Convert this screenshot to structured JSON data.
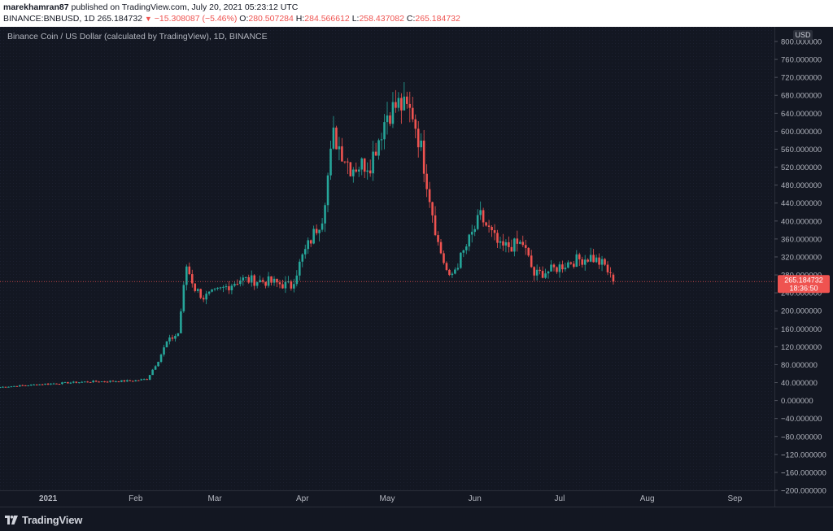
{
  "header": {
    "author": "marekhamran87",
    "published_text": "published on TradingView.com, July 20, 2021 05:23:12 UTC",
    "symbol_line_prefix": "BINANCE:BNBUSD, 1D 265.184732",
    "change_text": "−15.308087 (−5.46%)",
    "open_label": "O:",
    "open_value": "280.507284",
    "high_label": "H:",
    "high_value": "284.566612",
    "low_label": "L:",
    "low_value": "258.437082",
    "close_label": "C:",
    "close_value": "265.184732"
  },
  "chart_title": "Binance Coin / US Dollar (calculated by TradingView), 1D, BINANCE",
  "currency_label": "USD",
  "price_badge": {
    "price": "265.184732",
    "countdown": "18:36:50"
  },
  "footer": {
    "logo_text": "TradingView"
  },
  "colors": {
    "up": "#26a69a",
    "down": "#ef5350",
    "background": "#131722",
    "text": "#b2b5be"
  },
  "chart_data": {
    "type": "candlestick",
    "title": "Binance Coin / US Dollar (calculated by TradingView), 1D, BINANCE",
    "x_tick_labels": [
      "2021",
      "Feb",
      "Mar",
      "Apr",
      "May",
      "Jun",
      "Jul",
      "Aug",
      "Sep"
    ],
    "x_range": [
      "2020-12-15",
      "2021-09-15"
    ],
    "y_ticks": [
      800,
      760,
      720,
      680,
      640,
      600,
      560,
      520,
      480,
      440,
      400,
      360,
      320,
      280,
      240,
      200,
      160,
      120,
      80,
      40,
      0,
      -40,
      -80,
      -120,
      -160,
      -200
    ],
    "y_tick_labels": [
      "800.000000",
      "760.000000",
      "720.000000",
      "680.000000",
      "640.000000",
      "600.000000",
      "560.000000",
      "520.000000",
      "480.000000",
      "440.000000",
      "400.000000",
      "360.000000",
      "320.000000",
      "280.000000",
      "240.000000",
      "200.000000",
      "160.000000",
      "120.000000",
      "80.000000",
      "40.000000",
      "0.000000",
      "−40.000000",
      "−80.000000",
      "−120.000000",
      "−160.000000",
      "−200.000000"
    ],
    "y_range": [
      -200,
      800
    ],
    "last_price": 265.184732,
    "close_path": [
      [
        "2020-12-15",
        30
      ],
      [
        "2020-12-31",
        37
      ],
      [
        "2021-01-15",
        42
      ],
      [
        "2021-01-31",
        44
      ],
      [
        "2021-02-05",
        48
      ],
      [
        "2021-02-09",
        90
      ],
      [
        "2021-02-12",
        130
      ],
      [
        "2021-02-16",
        150
      ],
      [
        "2021-02-19",
        300
      ],
      [
        "2021-02-22",
        250
      ],
      [
        "2021-02-25",
        230
      ],
      [
        "2021-03-01",
        240
      ],
      [
        "2021-03-10",
        270
      ],
      [
        "2021-03-20",
        265
      ],
      [
        "2021-03-28",
        255
      ],
      [
        "2021-04-01",
        320
      ],
      [
        "2021-04-08",
        410
      ],
      [
        "2021-04-12",
        590
      ],
      [
        "2021-04-18",
        520
      ],
      [
        "2021-04-25",
        530
      ],
      [
        "2021-05-01",
        640
      ],
      [
        "2021-05-05",
        660
      ],
      [
        "2021-05-10",
        640
      ],
      [
        "2021-05-13",
        560
      ],
      [
        "2021-05-19",
        350
      ],
      [
        "2021-05-23",
        270
      ],
      [
        "2021-05-28",
        330
      ],
      [
        "2021-06-03",
        410
      ],
      [
        "2021-06-10",
        340
      ],
      [
        "2021-06-18",
        350
      ],
      [
        "2021-06-22",
        280
      ],
      [
        "2021-06-28",
        290
      ],
      [
        "2021-07-05",
        310
      ],
      [
        "2021-07-12",
        320
      ],
      [
        "2021-07-17",
        300
      ],
      [
        "2021-07-20",
        265
      ]
    ]
  }
}
